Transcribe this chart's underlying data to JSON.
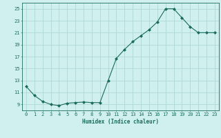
{
  "x": [
    0,
    1,
    2,
    3,
    4,
    5,
    6,
    7,
    8,
    9,
    10,
    11,
    12,
    13,
    14,
    15,
    16,
    17,
    18,
    19,
    20,
    21,
    22,
    23
  ],
  "y": [
    12,
    10.5,
    9.5,
    9,
    8.8,
    9.2,
    9.3,
    9.4,
    9.3,
    9.3,
    13,
    16.7,
    18.2,
    19.5,
    20.5,
    21.5,
    22.8,
    25,
    25,
    23.5,
    22,
    21,
    21,
    21
  ],
  "line_color": "#1a6b5e",
  "marker": "D",
  "marker_size": 2.0,
  "bg_color": "#cff0ee",
  "grid_color": "#b0d8d4",
  "xlabel": "Humidex (Indice chaleur)",
  "xlim": [
    -0.5,
    23.5
  ],
  "ylim": [
    8,
    26
  ],
  "yticks": [
    9,
    11,
    13,
    15,
    17,
    19,
    21,
    23,
    25
  ],
  "xtick_labels": [
    "0",
    "1",
    "2",
    "3",
    "4",
    "5",
    "6",
    "7",
    "8",
    "9",
    "10",
    "11",
    "12",
    "13",
    "14",
    "15",
    "16",
    "17",
    "18",
    "19",
    "20",
    "21",
    "22",
    "23"
  ],
  "font_color": "#1a6b5e",
  "tick_fontsize": 5.0,
  "xlabel_fontsize": 5.5,
  "linewidth": 0.8
}
